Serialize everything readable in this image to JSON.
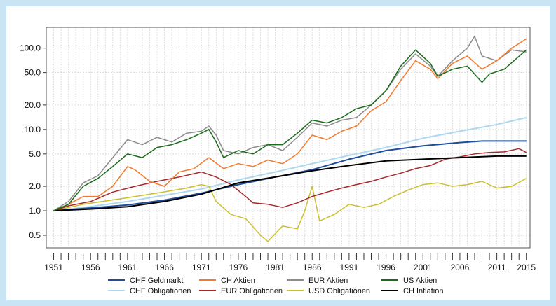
{
  "chart_data": {
    "type": "line",
    "title": "",
    "xlabel": "",
    "ylabel": "",
    "y_scale": "log",
    "xlim": [
      1950,
      2015.5
    ],
    "ylim": [
      0.35,
      180
    ],
    "grid": true,
    "legend_position": "bottom",
    "x_ticks": [
      1951,
      1956,
      1961,
      1966,
      1971,
      1976,
      1981,
      1986,
      1991,
      1996,
      2001,
      2006,
      2011,
      2015
    ],
    "x_tick_labels": [
      "1951",
      "1956",
      "1961",
      "1966",
      "1971",
      "1976",
      "1981",
      "1986",
      "1991",
      "1996",
      "2001",
      "2006",
      "2011",
      "2015"
    ],
    "y_ticks": [
      0.5,
      1,
      2,
      5,
      10,
      20,
      50,
      100
    ],
    "y_tick_labels": [
      "0.5",
      "1.0",
      "2.0",
      "5.0",
      "10.0",
      "20.0",
      "50.0",
      "100.0"
    ],
    "series": [
      {
        "name": "CHF Geldmarkt",
        "color": "#1f4e9c",
        "width": 2,
        "x": [
          1951,
          1956,
          1961,
          1966,
          1971,
          1976,
          1981,
          1986,
          1991,
          1996,
          2001,
          2006,
          2009,
          2015
        ],
        "y": [
          1.0,
          1.08,
          1.18,
          1.35,
          1.65,
          2.1,
          2.6,
          3.2,
          4.3,
          5.5,
          6.3,
          6.9,
          7.2,
          7.2
        ]
      },
      {
        "name": "CH Aktien",
        "color": "#f07a2e",
        "width": 1.5,
        "x": [
          1951,
          1953,
          1955,
          1957,
          1959,
          1961,
          1962,
          1964,
          1966,
          1968,
          1970,
          1972,
          1974,
          1976,
          1978,
          1980,
          1982,
          1984,
          1986,
          1988,
          1990,
          1992,
          1994,
          1996,
          1998,
          2000,
          2002,
          2003,
          2005,
          2007,
          2009,
          2011,
          2013,
          2015
        ],
        "y": [
          1.0,
          1.2,
          1.5,
          1.5,
          2.0,
          3.5,
          3.2,
          2.3,
          2.0,
          3.0,
          3.3,
          4.5,
          3.3,
          3.8,
          3.5,
          4.2,
          3.8,
          5.0,
          8.5,
          7.5,
          9.5,
          11,
          17,
          22,
          40,
          70,
          55,
          42,
          65,
          80,
          55,
          70,
          100,
          130
        ]
      },
      {
        "name": "EUR Aktien",
        "color": "#8c8c8c",
        "width": 1.5,
        "x": [
          1951,
          1953,
          1955,
          1957,
          1959,
          1961,
          1963,
          1965,
          1967,
          1969,
          1971,
          1972,
          1973,
          1974,
          1976,
          1978,
          1980,
          1982,
          1984,
          1986,
          1988,
          1990,
          1992,
          1994,
          1996,
          1998,
          2000,
          2002,
          2003,
          2005,
          2007,
          2008,
          2009,
          2011,
          2013,
          2015
        ],
        "y": [
          1.0,
          1.3,
          2.2,
          2.7,
          4.5,
          7.5,
          6.5,
          8.0,
          7.0,
          9.0,
          9.5,
          11,
          8.5,
          5.5,
          5.0,
          6.0,
          6.5,
          5.5,
          8.0,
          12,
          11,
          13,
          14,
          20,
          30,
          55,
          85,
          60,
          45,
          70,
          100,
          140,
          80,
          70,
          95,
          90
        ]
      },
      {
        "name": "US Aktien",
        "color": "#1a6b1a",
        "width": 1.5,
        "x": [
          1951,
          1953,
          1955,
          1957,
          1959,
          1961,
          1963,
          1965,
          1967,
          1969,
          1971,
          1972,
          1973,
          1974,
          1976,
          1978,
          1980,
          1982,
          1984,
          1986,
          1988,
          1990,
          1992,
          1994,
          1996,
          1998,
          2000,
          2002,
          2003,
          2005,
          2007,
          2009,
          2010,
          2012,
          2015
        ],
        "y": [
          1.0,
          1.2,
          2.0,
          2.5,
          3.5,
          5.0,
          4.5,
          6.0,
          6.5,
          7.5,
          9.0,
          10,
          7.0,
          4.5,
          5.5,
          5.0,
          6.5,
          6.5,
          9.0,
          13,
          12,
          14,
          18,
          20,
          30,
          60,
          95,
          65,
          45,
          55,
          60,
          38,
          48,
          55,
          95
        ]
      },
      {
        "name": "CHF Obligationen",
        "color": "#aed8ef",
        "width": 2,
        "x": [
          1951,
          1956,
          1961,
          1966,
          1971,
          1976,
          1981,
          1986,
          1991,
          1996,
          2001,
          2006,
          2011,
          2015
        ],
        "y": [
          1.0,
          1.12,
          1.3,
          1.55,
          1.85,
          2.4,
          3.0,
          3.8,
          4.8,
          6.0,
          7.8,
          9.5,
          11.5,
          14
        ]
      },
      {
        "name": "EUR Obligationen",
        "color": "#a8282a",
        "width": 1.5,
        "x": [
          1951,
          1953,
          1956,
          1959,
          1962,
          1965,
          1968,
          1971,
          1973,
          1975,
          1977,
          1978,
          1980,
          1982,
          1984,
          1986,
          1988,
          1990,
          1992,
          1994,
          1996,
          1998,
          2000,
          2002,
          2004,
          2006,
          2008,
          2010,
          2012,
          2014,
          2015
        ],
        "y": [
          1.0,
          1.15,
          1.3,
          1.7,
          2.0,
          2.3,
          2.6,
          3.0,
          2.6,
          2.1,
          1.5,
          1.25,
          1.2,
          1.1,
          1.25,
          1.5,
          1.7,
          1.9,
          2.1,
          2.3,
          2.6,
          2.9,
          3.3,
          3.6,
          4.3,
          4.6,
          5.0,
          5.2,
          5.3,
          5.8,
          5.2
        ]
      },
      {
        "name": "USD Obligationen",
        "color": "#c9c02e",
        "width": 1.5,
        "x": [
          1951,
          1955,
          1960,
          1965,
          1969,
          1971,
          1972,
          1973,
          1975,
          1977,
          1979,
          1980,
          1982,
          1984,
          1985,
          1986,
          1987,
          1989,
          1991,
          1993,
          1995,
          1997,
          1999,
          2001,
          2003,
          2005,
          2007,
          2009,
          2011,
          2013,
          2015
        ],
        "y": [
          1.0,
          1.2,
          1.4,
          1.65,
          1.9,
          2.1,
          2.0,
          1.3,
          0.9,
          0.8,
          0.5,
          0.42,
          0.65,
          0.6,
          1.0,
          2.0,
          0.75,
          0.9,
          1.2,
          1.1,
          1.2,
          1.5,
          1.8,
          2.1,
          2.2,
          2.0,
          2.1,
          2.3,
          1.9,
          2.0,
          2.5
        ]
      },
      {
        "name": "CH Inflation",
        "color": "#000000",
        "width": 2,
        "x": [
          1951,
          1956,
          1961,
          1966,
          1971,
          1976,
          1981,
          1986,
          1991,
          1996,
          2001,
          2006,
          2011,
          2015
        ],
        "y": [
          1.0,
          1.05,
          1.12,
          1.3,
          1.6,
          2.2,
          2.6,
          3.1,
          3.6,
          4.1,
          4.3,
          4.5,
          4.7,
          4.7
        ]
      }
    ]
  }
}
